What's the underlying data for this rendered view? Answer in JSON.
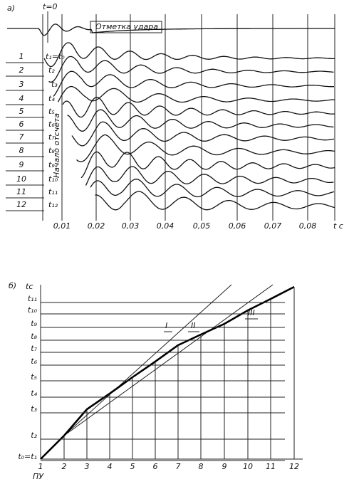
{
  "panel_a": {
    "label": "а)",
    "t_zero": "t=0",
    "impact_mark": "Отметка удара",
    "start_label": "Начало отсчета",
    "channels": [
      "1",
      "2",
      "3",
      "4",
      "5",
      "6",
      "7",
      "8",
      "9",
      "10",
      "11",
      "12"
    ],
    "time_labels": [
      "t₁=t₀",
      "t₂",
      "t₃",
      "t₄",
      "t₅",
      "t₆",
      "t₇",
      "t₈",
      "t₉",
      "t₁₀",
      "t₁₁",
      "t₁₂"
    ],
    "x_ticks": [
      "0,01",
      "0,02",
      "0,03",
      "0,04",
      "0,05",
      "0,06",
      "0,07",
      "0,08"
    ],
    "x_unit": "t c"
  },
  "panel_b": {
    "label": "б)",
    "y_unit": "tc",
    "y_labels": [
      "t₁₁",
      "t₁₀",
      "t₉",
      "t₈",
      "t₇",
      "t₆",
      "t₅",
      "t₄",
      "t₃",
      "t₂",
      "t₀=t₁"
    ],
    "x_labels": [
      "1",
      "2",
      "3",
      "4",
      "5",
      "6",
      "7",
      "8",
      "9",
      "10",
      "11",
      "12"
    ],
    "x_unit": "ПУ",
    "lines": [
      "I",
      "II",
      "III"
    ]
  }
}
